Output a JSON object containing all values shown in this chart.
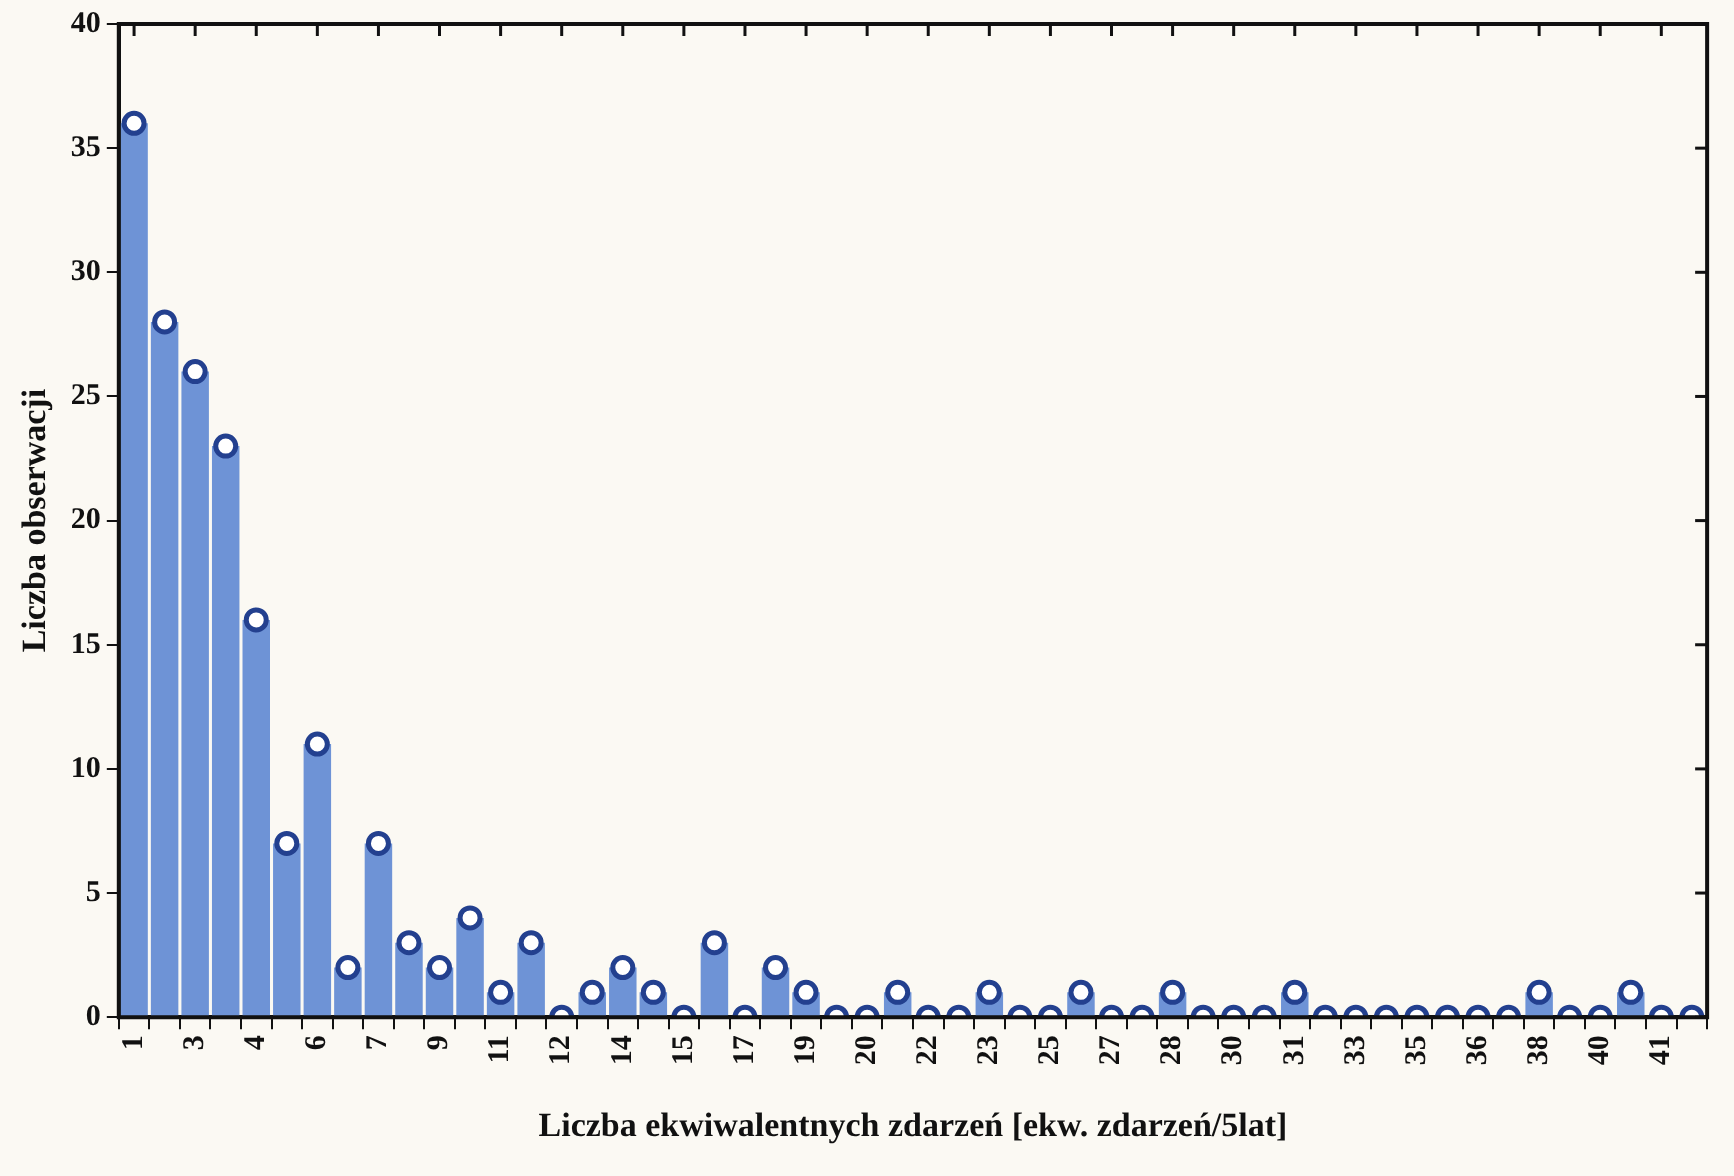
{
  "chart_data": {
    "type": "bar",
    "xlabel": "Liczba ekwiwalentnych zdarzeń [ekw. zdarzeń/5lat]",
    "ylabel": "Liczba obserwacji",
    "categories": [
      "1",
      null,
      "3",
      null,
      "4",
      null,
      "6",
      null,
      "7",
      null,
      "9",
      null,
      "11",
      null,
      "12",
      null,
      "14",
      null,
      "15",
      null,
      "17",
      null,
      "19",
      null,
      "20",
      null,
      "22",
      null,
      "23",
      null,
      "25",
      null,
      "27",
      null,
      "28",
      null,
      "30",
      null,
      "31",
      null,
      "33",
      null,
      "35",
      null,
      "36",
      null,
      "38",
      null,
      "40",
      null,
      "41",
      null
    ],
    "series": [
      {
        "color": "#6e93d6",
        "values": [
          36,
          28,
          26,
          23,
          16,
          7,
          11,
          2,
          7,
          3,
          2,
          4,
          1,
          3,
          0,
          1,
          2,
          1,
          0,
          3,
          0,
          2,
          1,
          0,
          0,
          1,
          0,
          0,
          1,
          0,
          0,
          1,
          0,
          0,
          1,
          0,
          0,
          0,
          1,
          0,
          0,
          0,
          0,
          0,
          0,
          0,
          1,
          0,
          0,
          1,
          0,
          0
        ]
      },
      {
        "type": "scatter",
        "color": "#ffffff",
        "values": [
          36,
          28,
          26,
          23,
          16,
          7,
          11,
          2,
          7,
          3,
          2,
          4,
          1,
          3,
          0,
          1,
          2,
          1,
          0,
          3,
          0,
          2,
          1,
          0,
          0,
          1,
          0,
          0,
          1,
          0,
          0,
          1,
          0,
          0,
          1,
          0,
          0,
          0,
          1,
          0,
          0,
          0,
          0,
          0,
          0,
          0,
          1,
          0,
          0,
          1,
          0,
          0
        ]
      }
    ],
    "ylim": [
      0,
      40
    ],
    "yticks": [
      0,
      5,
      10,
      15,
      20,
      25,
      30,
      35,
      40
    ],
    "grid": false,
    "legend": false,
    "marker": "circle"
  }
}
